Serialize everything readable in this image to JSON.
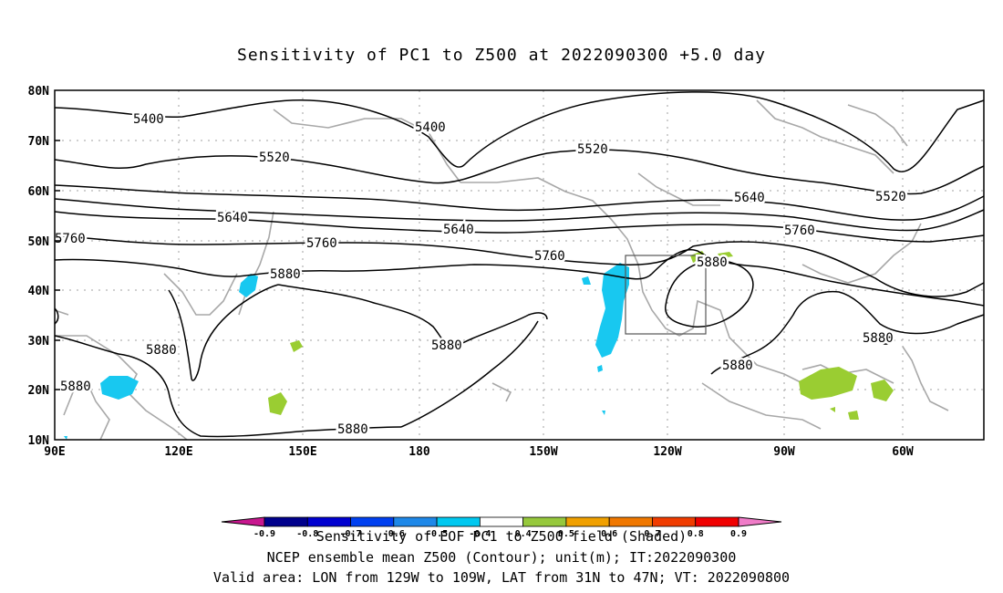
{
  "title": "Sensitivity of PC1 to Z500 at 2022090300 +5.0 day",
  "lat_labels": [
    "80N",
    "70N",
    "60N",
    "50N",
    "40N",
    "30N",
    "20N",
    "10N"
  ],
  "lon_labels": [
    "90E",
    "120E",
    "150E",
    "180",
    "150W",
    "120W",
    "90W",
    "60W"
  ],
  "contour_labels": [
    "5400",
    "5400",
    "5520",
    "5520",
    "5520",
    "5640",
    "5640",
    "5640",
    "5760",
    "5760",
    "5760",
    "5760",
    "5880",
    "5880",
    "5880",
    "5880",
    "5880",
    "5880",
    "5880"
  ],
  "valid_area": {
    "lon_from": "129W",
    "lon_to": "109W",
    "lat_from": "31N",
    "lat_to": "47N"
  },
  "colorbar": {
    "tick_labels": [
      "-0.9",
      "-0.8",
      "-0.7",
      "-0.6",
      "-0.5",
      "-0.4",
      "0.4",
      "0.5",
      "0.6",
      "0.7",
      "0.8",
      "0.9"
    ],
    "colors": [
      "#c8178f",
      "#00008c",
      "#0000d0",
      "#0040f0",
      "#1e88e8",
      "#00c8f0",
      "#ffffff",
      "#96c83c",
      "#f0a000",
      "#f07800",
      "#f03c00",
      "#f00000",
      "#f07cc8"
    ]
  },
  "colors": {
    "sensitivity_positive": "#9acd32",
    "sensitivity_negative": "#18c8f0",
    "coastline": "#a8a8a8",
    "contour": "#000000",
    "grid": "#a0a0a0"
  },
  "footer": {
    "line1": "Sensitivity of EOF PC1 to Z500 field (Shaded)",
    "line2": "NCEP ensemble mean Z500 (Contour); unit(m); IT:2022090300",
    "line3": "Valid area: LON from 129W to 109W, LAT from 31N to 47N; VT: 2022090800"
  }
}
